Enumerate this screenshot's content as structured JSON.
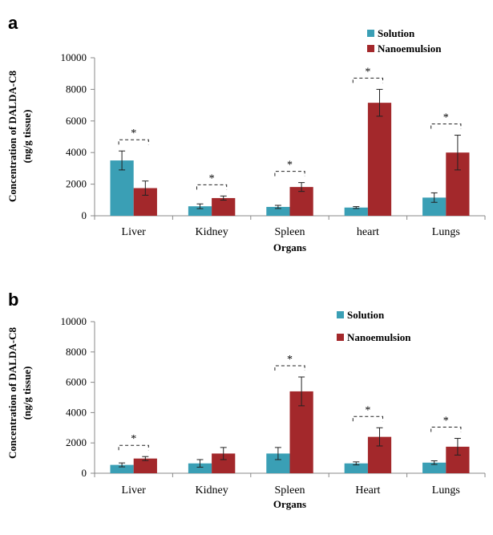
{
  "colors": {
    "solution": "#3a9fb5",
    "nanoemulsion": "#a3282b"
  },
  "chart_data": [
    {
      "panel": "a",
      "type": "bar",
      "categories": [
        "Liver",
        "Kidney",
        "Spleen",
        "heart",
        "Lungs"
      ],
      "series": [
        {
          "name": "Solution",
          "values": [
            3500,
            600,
            560,
            520,
            1150
          ],
          "errors": [
            600,
            150,
            100,
            60,
            300
          ]
        },
        {
          "name": "Nanoemulsion",
          "values": [
            1750,
            1120,
            1820,
            7150,
            4000
          ],
          "errors": [
            450,
            130,
            280,
            850,
            1100
          ]
        }
      ],
      "significance": [
        "*",
        "*",
        "*",
        "*",
        "*"
      ],
      "xlabel": "Organs",
      "ylabel": "Concentration of DALDA-C8",
      "ylabel_unit": "(ng/g tissue)",
      "ylim": [
        0,
        10000
      ],
      "yticks": [
        "0",
        "2000",
        "4000",
        "6000",
        "8000",
        "10000"
      ],
      "legend_position": "top-right"
    },
    {
      "panel": "b",
      "type": "bar",
      "categories": [
        "Liver",
        "Kidney",
        "Spleen",
        "Heart",
        "Lungs"
      ],
      "series": [
        {
          "name": "Solution",
          "values": [
            550,
            650,
            1300,
            650,
            700
          ],
          "errors": [
            130,
            250,
            400,
            100,
            120
          ]
        },
        {
          "name": "Nanoemulsion",
          "values": [
            970,
            1300,
            5400,
            2400,
            1750
          ],
          "errors": [
            130,
            400,
            950,
            600,
            550
          ]
        }
      ],
      "significance": [
        "*",
        "",
        "*",
        "*",
        "*"
      ],
      "xlabel": "Organs",
      "ylabel": "Concentration of DALDA-C8",
      "ylabel_unit": "(ng/g tissue)",
      "ylim": [
        0,
        10000
      ],
      "yticks": [
        "0",
        "2000",
        "4000",
        "6000",
        "8000",
        "10000"
      ],
      "legend_position": "top-right"
    }
  ]
}
